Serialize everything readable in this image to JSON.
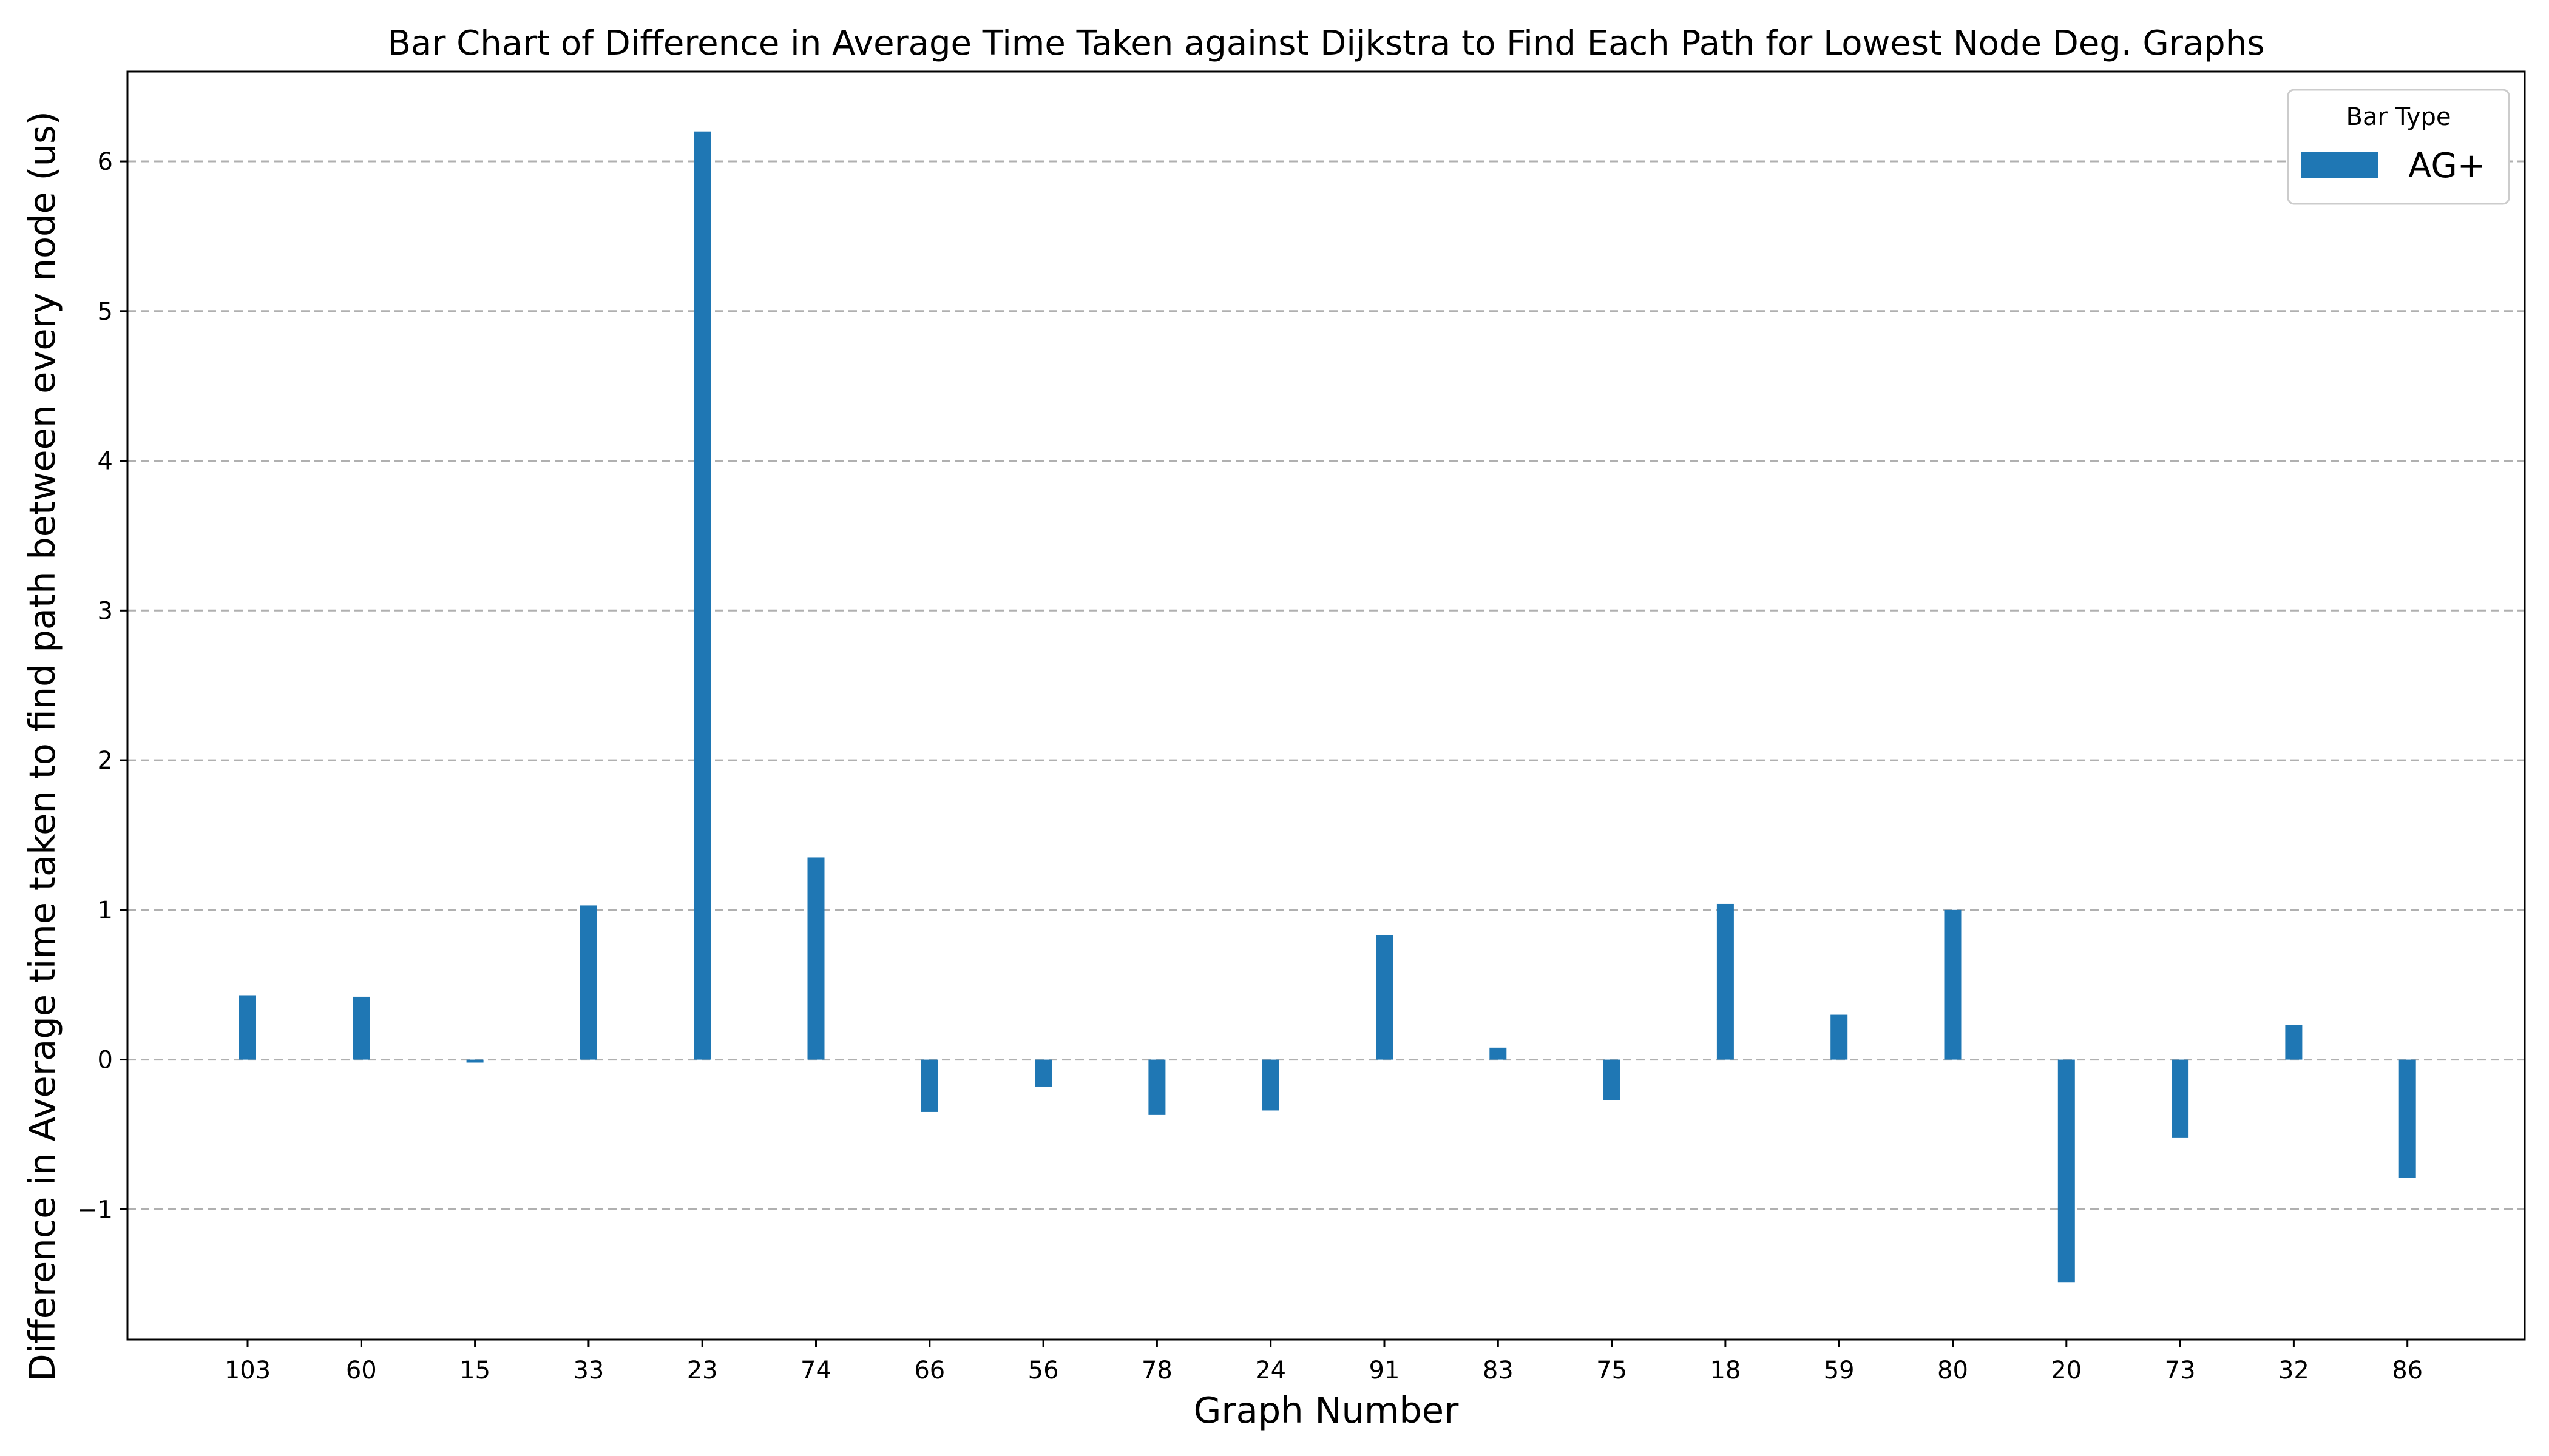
{
  "chart_data": {
    "type": "bar",
    "title": "Bar Chart of Difference in Average Time Taken against Dijkstra to Find Each Path for Lowest Node Deg. Graphs",
    "xlabel": "Graph Number",
    "ylabel": "Difference in Average time taken to find path between every node (us)",
    "categories": [
      "103",
      "60",
      "15",
      "33",
      "23",
      "74",
      "66",
      "56",
      "78",
      "24",
      "91",
      "83",
      "75",
      "18",
      "59",
      "80",
      "20",
      "73",
      "32",
      "86"
    ],
    "series": [
      {
        "name": "AG+",
        "color": "#1f77b4",
        "values": [
          0.43,
          0.42,
          -0.02,
          1.03,
          6.2,
          1.35,
          -0.35,
          -0.18,
          -0.37,
          -0.34,
          0.83,
          0.08,
          -0.27,
          1.04,
          0.3,
          1.0,
          -1.49,
          -0.52,
          0.23,
          -0.79
        ]
      }
    ],
    "ylim": [
      -1.87,
      6.6
    ],
    "yticks": [
      -1,
      0,
      1,
      2,
      3,
      4,
      5,
      6
    ],
    "ytick_labels": [
      "−1",
      "0",
      "1",
      "2",
      "3",
      "4",
      "5",
      "6"
    ],
    "grid": "y-dashed",
    "legend": {
      "title": "Bar Type",
      "position": "top-right"
    }
  }
}
